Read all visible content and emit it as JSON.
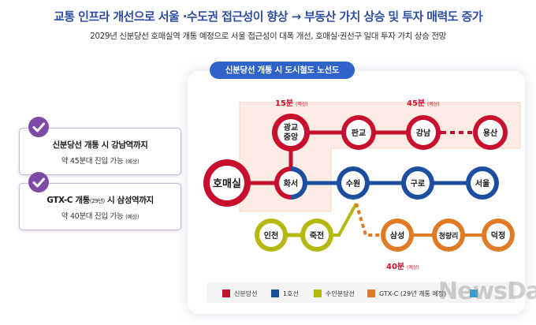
{
  "header": {
    "headline": "교통 인프라 개선으로 서울 ·수도권 접근성이 향상 → 부동산 가치 상승 및 투자 매력도 증가",
    "subline": "2029년 신분당선 호매실역 개통 예정으로 서울 접근성이 대폭 개선, 호매실·권선구 일대 투자 가치 상승 전망"
  },
  "cards": [
    {
      "title": "신분당선 개통 시 강남역까지",
      "title_small": "",
      "title_suffix": "",
      "desc": "약 45분대 진입 가능",
      "desc_note": "(예상)"
    },
    {
      "title": "GTX-C 개통",
      "title_small": "(29년)",
      "title_suffix": " 시 삼성역까지",
      "desc": "약 40분대 진입 가능",
      "desc_note": "(예상)"
    }
  ],
  "map": {
    "title": "신분당선 개통 시 도시철도 노선도",
    "stations": {
      "homaesil": "호매실",
      "gwanggyo": "광교\n중앙",
      "hwaseo": "화서",
      "pangyo": "판교",
      "gangnam": "강남",
      "yongsan": "용산",
      "suwon": "수원",
      "guro": "구로",
      "seoul": "서울",
      "incheon": "인천",
      "jukjeon": "죽전",
      "samseong": "삼성",
      "cheongnyangni": "청량리",
      "deokjeong": "덕정"
    },
    "times": {
      "t15": {
        "value": "15분",
        "note": "(예상)"
      },
      "t45": {
        "value": "45분",
        "note": "(예상)"
      },
      "t40": {
        "value": "40분",
        "note": "(예상)"
      }
    },
    "legend": [
      {
        "label": "신분당선",
        "color": "#c8102e"
      },
      {
        "label": "1호선",
        "color": "#1d4fa0"
      },
      {
        "label": "수인분당선",
        "color": "#b5b80f"
      },
      {
        "label": "GTX-C (29년 개통 예정)",
        "color": "#e07b25"
      },
      {
        "label": "",
        "color": "#2b9fd6"
      }
    ]
  },
  "watermark": "NewsDa",
  "colors": {
    "sinbundang": "#c8102e",
    "line1": "#1d4fa0",
    "suin": "#b5b80f",
    "gtxc": "#e07b25",
    "accent_blue": "#2d4ea3",
    "check_purple": "#7e4aa8"
  }
}
